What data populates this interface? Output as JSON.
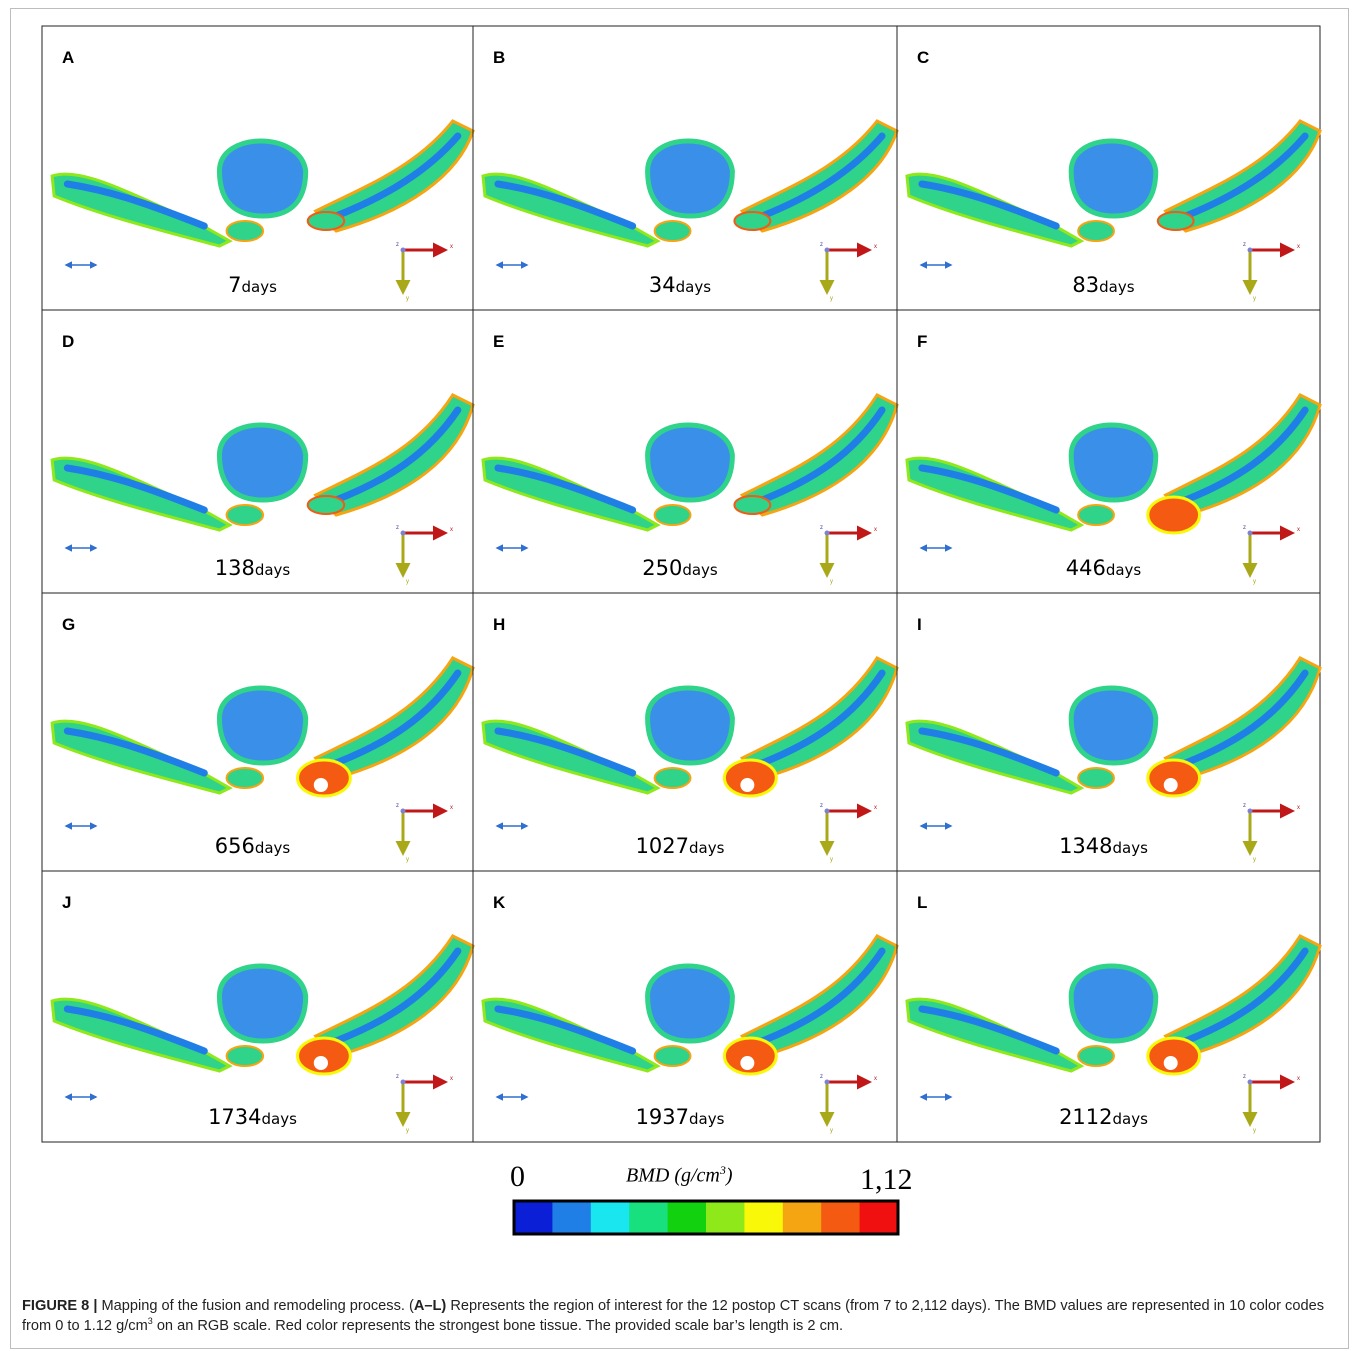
{
  "panels": [
    {
      "letter": "A",
      "days": 7,
      "unit": "days"
    },
    {
      "letter": "B",
      "days": 34,
      "unit": "days"
    },
    {
      "letter": "C",
      "days": 83,
      "unit": "days"
    },
    {
      "letter": "D",
      "days": 138,
      "unit": "days"
    },
    {
      "letter": "E",
      "days": 250,
      "unit": "days"
    },
    {
      "letter": "F",
      "days": 446,
      "unit": "days"
    },
    {
      "letter": "G",
      "days": 656,
      "unit": "days"
    },
    {
      "letter": "H",
      "days": 1027,
      "unit": "days"
    },
    {
      "letter": "I",
      "days": 1348,
      "unit": "days"
    },
    {
      "letter": "J",
      "days": 1734,
      "unit": "days"
    },
    {
      "letter": "K",
      "days": 1937,
      "unit": "days"
    },
    {
      "letter": "L",
      "days": 2112,
      "unit": "days"
    }
  ],
  "axes_labels": {
    "z": "z",
    "x": "x",
    "y": "y"
  },
  "colorbar": {
    "title": "BMD (g/cm",
    "title_sup": "3",
    "title_end": ")",
    "min": 0,
    "max": {
      "value": 1.12,
      "label": "1,12"
    },
    "colors": [
      "#0a1fd6",
      "#1f7fe6",
      "#19e6ef",
      "#19e07e",
      "#12d10e",
      "#8ee81a",
      "#f8f808",
      "#f5a412",
      "#f55a12",
      "#f01010"
    ]
  },
  "caption": {
    "label": "FIGURE 8 |",
    "text1": "Mapping of the fusion and remodeling process. (",
    "bold": "A–L)",
    "text2": "Represents the region of interest for the 12 postop CT scans (from 7 to 2,112 days). The BMD values are represented in 10 color codes from 0 to 1.12 g/cm",
    "sup": "3",
    "text3": "on an RGB scale. Red color represents the strongest bone tissue. The provided scale bar’s length is 2 cm."
  }
}
